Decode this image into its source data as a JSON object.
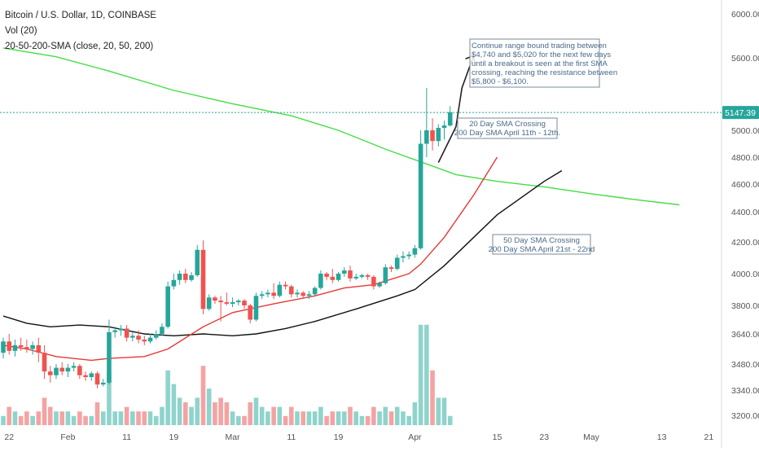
{
  "header": {
    "symbol": "Bitcoin / U.S. Dollar, 1D, COINBASE",
    "vol": "Vol (20)",
    "sma": "20-50-200-SMA (close, 20, 50, 200)"
  },
  "price_label": "5147.39",
  "annotations": {
    "note_lines": [
      "Continue range bound trading between",
      "$4,740 and $5,020 for the next few days",
      "until a breakout is seen at the first SMA",
      "crossing, reaching the resistance between",
      "$5,800 - $6,100."
    ],
    "cross1_lines": [
      "20 Day SMA Crossing",
      "200 Day SMA April 11th - 12th."
    ],
    "cross2_lines": [
      "50 Day SMA Crossing",
      "200 Day SMA April 21st - 22nd"
    ]
  },
  "colors": {
    "up": "#26a69a",
    "down": "#ef5350",
    "vol_up": "#8fd3cc",
    "vol_down": "#f4a3a3",
    "sma20": "#e53935",
    "sma50": "#111111",
    "sma200": "#44dd44",
    "price_line": "#26a69a",
    "axis_text": "#555555",
    "note_text": "#4a6a8a"
  },
  "chart_data": {
    "type": "candlestick",
    "title": "Bitcoin / U.S. Dollar, 1D, COINBASE",
    "ylim": [
      3150,
      6150
    ],
    "y_ticks": [
      3200,
      3340,
      3480,
      3640,
      3800,
      4000,
      4200,
      4400,
      4600,
      4800,
      5000,
      5600,
      6000
    ],
    "y_tick_labels": [
      "3200.00",
      "3340.00",
      "3480.00",
      "3640.00",
      "3800.00",
      "4000.00",
      "4200.00",
      "4400.00",
      "4600.00",
      "4800.00",
      "5000.00",
      "5600.00",
      "6000.00"
    ],
    "x_ticks": [
      {
        "label": "22",
        "date": "2019-01-22"
      },
      {
        "label": "Feb",
        "date": "2019-02-01"
      },
      {
        "label": "11",
        "date": "2019-02-11"
      },
      {
        "label": "19",
        "date": "2019-02-19"
      },
      {
        "label": "Mar",
        "date": "2019-03-01"
      },
      {
        "label": "11",
        "date": "2019-03-11"
      },
      {
        "label": "19",
        "date": "2019-03-19"
      },
      {
        "label": "Apr",
        "date": "2019-04-01"
      },
      {
        "label": "15",
        "date": "2019-04-15"
      },
      {
        "label": "23",
        "date": "2019-04-23"
      },
      {
        "label": "May",
        "date": "2019-05-01"
      },
      {
        "label": "13",
        "date": "2019-05-13"
      },
      {
        "label": "21",
        "date": "2019-05-21"
      }
    ],
    "last_price": 5147.39,
    "candles": [
      {
        "date": "2019-01-21",
        "o": 3540,
        "h": 3620,
        "l": 3510,
        "c": 3600,
        "v": 2
      },
      {
        "date": "2019-01-22",
        "o": 3600,
        "h": 3640,
        "l": 3530,
        "c": 3550,
        "v": 4
      },
      {
        "date": "2019-01-23",
        "o": 3550,
        "h": 3610,
        "l": 3520,
        "c": 3580,
        "v": 3
      },
      {
        "date": "2019-01-24",
        "o": 3580,
        "h": 3620,
        "l": 3550,
        "c": 3570,
        "v": 2
      },
      {
        "date": "2019-01-25",
        "o": 3570,
        "h": 3610,
        "l": 3540,
        "c": 3560,
        "v": 3
      },
      {
        "date": "2019-01-26",
        "o": 3560,
        "h": 3600,
        "l": 3530,
        "c": 3580,
        "v": 2
      },
      {
        "date": "2019-01-27",
        "o": 3580,
        "h": 3620,
        "l": 3490,
        "c": 3540,
        "v": 3
      },
      {
        "date": "2019-01-28",
        "o": 3540,
        "h": 3580,
        "l": 3400,
        "c": 3440,
        "v": 6
      },
      {
        "date": "2019-01-29",
        "o": 3440,
        "h": 3470,
        "l": 3380,
        "c": 3420,
        "v": 4
      },
      {
        "date": "2019-01-30",
        "o": 3420,
        "h": 3480,
        "l": 3400,
        "c": 3460,
        "v": 3
      },
      {
        "date": "2019-01-31",
        "o": 3460,
        "h": 3490,
        "l": 3420,
        "c": 3440,
        "v": 3
      },
      {
        "date": "2019-02-01",
        "o": 3440,
        "h": 3480,
        "l": 3410,
        "c": 3460,
        "v": 3
      },
      {
        "date": "2019-02-02",
        "o": 3460,
        "h": 3490,
        "l": 3440,
        "c": 3470,
        "v": 2
      },
      {
        "date": "2019-02-03",
        "o": 3470,
        "h": 3480,
        "l": 3400,
        "c": 3420,
        "v": 3
      },
      {
        "date": "2019-02-04",
        "o": 3420,
        "h": 3440,
        "l": 3390,
        "c": 3410,
        "v": 2
      },
      {
        "date": "2019-02-05",
        "o": 3410,
        "h": 3440,
        "l": 3390,
        "c": 3430,
        "v": 2
      },
      {
        "date": "2019-02-06",
        "o": 3430,
        "h": 3440,
        "l": 3350,
        "c": 3370,
        "v": 5
      },
      {
        "date": "2019-02-07",
        "o": 3370,
        "h": 3400,
        "l": 3360,
        "c": 3380,
        "v": 3
      },
      {
        "date": "2019-02-08",
        "o": 3380,
        "h": 3720,
        "l": 3370,
        "c": 3650,
        "v": 12
      },
      {
        "date": "2019-02-09",
        "o": 3650,
        "h": 3680,
        "l": 3620,
        "c": 3660,
        "v": 3
      },
      {
        "date": "2019-02-10",
        "o": 3660,
        "h": 3690,
        "l": 3630,
        "c": 3670,
        "v": 3
      },
      {
        "date": "2019-02-11",
        "o": 3670,
        "h": 3690,
        "l": 3600,
        "c": 3620,
        "v": 4
      },
      {
        "date": "2019-02-12",
        "o": 3620,
        "h": 3650,
        "l": 3600,
        "c": 3630,
        "v": 3
      },
      {
        "date": "2019-02-13",
        "o": 3630,
        "h": 3660,
        "l": 3590,
        "c": 3610,
        "v": 3
      },
      {
        "date": "2019-02-14",
        "o": 3610,
        "h": 3630,
        "l": 3580,
        "c": 3600,
        "v": 3
      },
      {
        "date": "2019-02-15",
        "o": 3600,
        "h": 3640,
        "l": 3590,
        "c": 3620,
        "v": 3
      },
      {
        "date": "2019-02-16",
        "o": 3620,
        "h": 3660,
        "l": 3610,
        "c": 3640,
        "v": 2
      },
      {
        "date": "2019-02-17",
        "o": 3640,
        "h": 3700,
        "l": 3630,
        "c": 3680,
        "v": 4
      },
      {
        "date": "2019-02-18",
        "o": 3680,
        "h": 3950,
        "l": 3670,
        "c": 3920,
        "v": 12
      },
      {
        "date": "2019-02-19",
        "o": 3920,
        "h": 4000,
        "l": 3900,
        "c": 3960,
        "v": 9
      },
      {
        "date": "2019-02-20",
        "o": 3960,
        "h": 4020,
        "l": 3930,
        "c": 4000,
        "v": 6
      },
      {
        "date": "2019-02-21",
        "o": 4000,
        "h": 4030,
        "l": 3940,
        "c": 3960,
        "v": 5
      },
      {
        "date": "2019-02-22",
        "o": 3960,
        "h": 4010,
        "l": 3950,
        "c": 3990,
        "v": 4
      },
      {
        "date": "2019-02-23",
        "o": 3990,
        "h": 4180,
        "l": 3980,
        "c": 4150,
        "v": 6
      },
      {
        "date": "2019-02-24",
        "o": 4150,
        "h": 4210,
        "l": 3750,
        "c": 3780,
        "v": 13
      },
      {
        "date": "2019-02-25",
        "o": 3780,
        "h": 3870,
        "l": 3770,
        "c": 3850,
        "v": 8
      },
      {
        "date": "2019-02-26",
        "o": 3850,
        "h": 3860,
        "l": 3810,
        "c": 3830,
        "v": 5
      },
      {
        "date": "2019-02-27",
        "o": 3830,
        "h": 3860,
        "l": 3710,
        "c": 3820,
        "v": 6
      },
      {
        "date": "2019-02-28",
        "o": 3820,
        "h": 3880,
        "l": 3800,
        "c": 3810,
        "v": 5
      },
      {
        "date": "2019-03-01",
        "o": 3810,
        "h": 3850,
        "l": 3790,
        "c": 3820,
        "v": 3
      },
      {
        "date": "2019-03-02",
        "o": 3820,
        "h": 3840,
        "l": 3800,
        "c": 3830,
        "v": 2
      },
      {
        "date": "2019-03-03",
        "o": 3830,
        "h": 3840,
        "l": 3780,
        "c": 3800,
        "v": 2
      },
      {
        "date": "2019-03-04",
        "o": 3800,
        "h": 3810,
        "l": 3700,
        "c": 3720,
        "v": 5
      },
      {
        "date": "2019-03-05",
        "o": 3720,
        "h": 3880,
        "l": 3710,
        "c": 3860,
        "v": 6
      },
      {
        "date": "2019-03-06",
        "o": 3860,
        "h": 3890,
        "l": 3840,
        "c": 3870,
        "v": 4
      },
      {
        "date": "2019-03-07",
        "o": 3870,
        "h": 3900,
        "l": 3850,
        "c": 3880,
        "v": 3
      },
      {
        "date": "2019-03-08",
        "o": 3880,
        "h": 3940,
        "l": 3840,
        "c": 3860,
        "v": 4
      },
      {
        "date": "2019-03-09",
        "o": 3860,
        "h": 3950,
        "l": 3850,
        "c": 3930,
        "v": 4
      },
      {
        "date": "2019-03-10",
        "o": 3930,
        "h": 3950,
        "l": 3900,
        "c": 3920,
        "v": 2
      },
      {
        "date": "2019-03-11",
        "o": 3920,
        "h": 3930,
        "l": 3850,
        "c": 3870,
        "v": 4
      },
      {
        "date": "2019-03-12",
        "o": 3870,
        "h": 3900,
        "l": 3850,
        "c": 3880,
        "v": 3
      },
      {
        "date": "2019-03-13",
        "o": 3880,
        "h": 3890,
        "l": 3850,
        "c": 3860,
        "v": 3
      },
      {
        "date": "2019-03-14",
        "o": 3860,
        "h": 3890,
        "l": 3840,
        "c": 3870,
        "v": 3
      },
      {
        "date": "2019-03-15",
        "o": 3870,
        "h": 3920,
        "l": 3860,
        "c": 3910,
        "v": 3
      },
      {
        "date": "2019-03-16",
        "o": 3910,
        "h": 4020,
        "l": 3900,
        "c": 4000,
        "v": 4
      },
      {
        "date": "2019-03-17",
        "o": 4000,
        "h": 4010,
        "l": 3960,
        "c": 3980,
        "v": 2
      },
      {
        "date": "2019-03-18",
        "o": 3980,
        "h": 4030,
        "l": 3940,
        "c": 3960,
        "v": 3
      },
      {
        "date": "2019-03-19",
        "o": 3960,
        "h": 4010,
        "l": 3950,
        "c": 4000,
        "v": 3
      },
      {
        "date": "2019-03-20",
        "o": 4000,
        "h": 4040,
        "l": 3980,
        "c": 4020,
        "v": 3
      },
      {
        "date": "2019-03-21",
        "o": 4020,
        "h": 4050,
        "l": 3950,
        "c": 3970,
        "v": 4
      },
      {
        "date": "2019-03-22",
        "o": 3970,
        "h": 4000,
        "l": 3960,
        "c": 3980,
        "v": 3
      },
      {
        "date": "2019-03-23",
        "o": 3980,
        "h": 4000,
        "l": 3970,
        "c": 3990,
        "v": 2
      },
      {
        "date": "2019-03-24",
        "o": 3990,
        "h": 4000,
        "l": 3960,
        "c": 3980,
        "v": 2
      },
      {
        "date": "2019-03-25",
        "o": 3980,
        "h": 3990,
        "l": 3900,
        "c": 3920,
        "v": 4
      },
      {
        "date": "2019-03-26",
        "o": 3920,
        "h": 3950,
        "l": 3910,
        "c": 3940,
        "v": 3
      },
      {
        "date": "2019-03-27",
        "o": 3940,
        "h": 4060,
        "l": 3930,
        "c": 4040,
        "v": 4
      },
      {
        "date": "2019-03-28",
        "o": 4040,
        "h": 4050,
        "l": 4010,
        "c": 4030,
        "v": 3
      },
      {
        "date": "2019-03-29",
        "o": 4030,
        "h": 4120,
        "l": 4020,
        "c": 4100,
        "v": 4
      },
      {
        "date": "2019-03-30",
        "o": 4100,
        "h": 4140,
        "l": 4070,
        "c": 4110,
        "v": 3
      },
      {
        "date": "2019-03-31",
        "o": 4110,
        "h": 4140,
        "l": 4090,
        "c": 4120,
        "v": 2
      },
      {
        "date": "2019-04-01",
        "o": 4120,
        "h": 4180,
        "l": 4100,
        "c": 4160,
        "v": 5
      },
      {
        "date": "2019-04-02",
        "o": 4160,
        "h": 5000,
        "l": 4150,
        "c": 4900,
        "v": 22
      },
      {
        "date": "2019-04-03",
        "o": 4900,
        "h": 5350,
        "l": 4800,
        "c": 5000,
        "v": 22
      },
      {
        "date": "2019-04-04",
        "o": 5000,
        "h": 5100,
        "l": 4850,
        "c": 4920,
        "v": 12
      },
      {
        "date": "2019-04-05",
        "o": 4920,
        "h": 5050,
        "l": 4880,
        "c": 5020,
        "v": 6
      },
      {
        "date": "2019-04-06",
        "o": 5020,
        "h": 5080,
        "l": 4930,
        "c": 5040,
        "v": 6
      },
      {
        "date": "2019-04-07",
        "o": 5040,
        "h": 5200,
        "l": 5030,
        "c": 5150,
        "v": 2
      }
    ],
    "sma20_path": [
      {
        "date": "2019-01-21",
        "v": 3580
      },
      {
        "date": "2019-01-25",
        "v": 3560
      },
      {
        "date": "2019-01-30",
        "v": 3520
      },
      {
        "date": "2019-02-05",
        "v": 3500
      },
      {
        "date": "2019-02-08",
        "v": 3510
      },
      {
        "date": "2019-02-14",
        "v": 3520
      },
      {
        "date": "2019-02-18",
        "v": 3560
      },
      {
        "date": "2019-02-24",
        "v": 3680
      },
      {
        "date": "2019-03-01",
        "v": 3760
      },
      {
        "date": "2019-03-08",
        "v": 3810
      },
      {
        "date": "2019-03-15",
        "v": 3860
      },
      {
        "date": "2019-03-20",
        "v": 3910
      },
      {
        "date": "2019-03-25",
        "v": 3930
      },
      {
        "date": "2019-03-31",
        "v": 4000
      },
      {
        "date": "2019-04-02",
        "v": 4060
      },
      {
        "date": "2019-04-06",
        "v": 4230
      },
      {
        "date": "2019-04-11",
        "v": 4520
      },
      {
        "date": "2019-04-15",
        "v": 4800
      }
    ],
    "sma50_path": [
      {
        "date": "2019-01-21",
        "v": 3740
      },
      {
        "date": "2019-01-25",
        "v": 3700
      },
      {
        "date": "2019-01-29",
        "v": 3680
      },
      {
        "date": "2019-02-03",
        "v": 3690
      },
      {
        "date": "2019-02-08",
        "v": 3680
      },
      {
        "date": "2019-02-14",
        "v": 3640
      },
      {
        "date": "2019-02-19",
        "v": 3630
      },
      {
        "date": "2019-02-24",
        "v": 3640
      },
      {
        "date": "2019-03-01",
        "v": 3630
      },
      {
        "date": "2019-03-05",
        "v": 3640
      },
      {
        "date": "2019-03-10",
        "v": 3670
      },
      {
        "date": "2019-03-15",
        "v": 3710
      },
      {
        "date": "2019-03-22",
        "v": 3780
      },
      {
        "date": "2019-03-29",
        "v": 3860
      },
      {
        "date": "2019-04-01",
        "v": 3900
      },
      {
        "date": "2019-04-06",
        "v": 4050
      },
      {
        "date": "2019-04-15",
        "v": 4380
      },
      {
        "date": "2019-04-23",
        "v": 4620
      },
      {
        "date": "2019-04-26",
        "v": 4700
      }
    ],
    "sma200_path": [
      {
        "date": "2019-01-21",
        "v": 5690
      },
      {
        "date": "2019-01-30",
        "v": 5610
      },
      {
        "date": "2019-02-08",
        "v": 5490
      },
      {
        "date": "2019-02-19",
        "v": 5330
      },
      {
        "date": "2019-03-01",
        "v": 5220
      },
      {
        "date": "2019-03-11",
        "v": 5120
      },
      {
        "date": "2019-03-19",
        "v": 5000
      },
      {
        "date": "2019-03-27",
        "v": 4860
      },
      {
        "date": "2019-04-03",
        "v": 4750
      },
      {
        "date": "2019-04-08",
        "v": 4670
      },
      {
        "date": "2019-04-15",
        "v": 4620
      },
      {
        "date": "2019-04-23",
        "v": 4580
      },
      {
        "date": "2019-05-01",
        "v": 4530
      },
      {
        "date": "2019-05-08",
        "v": 4490
      },
      {
        "date": "2019-05-16",
        "v": 4450
      }
    ],
    "projection_arrow": [
      {
        "date": "2019-04-05",
        "v": 4760
      },
      {
        "date": "2019-04-08",
        "v": 5030
      },
      {
        "date": "2019-04-09",
        "v": 5350
      },
      {
        "date": "2019-04-11",
        "v": 5620
      }
    ]
  }
}
